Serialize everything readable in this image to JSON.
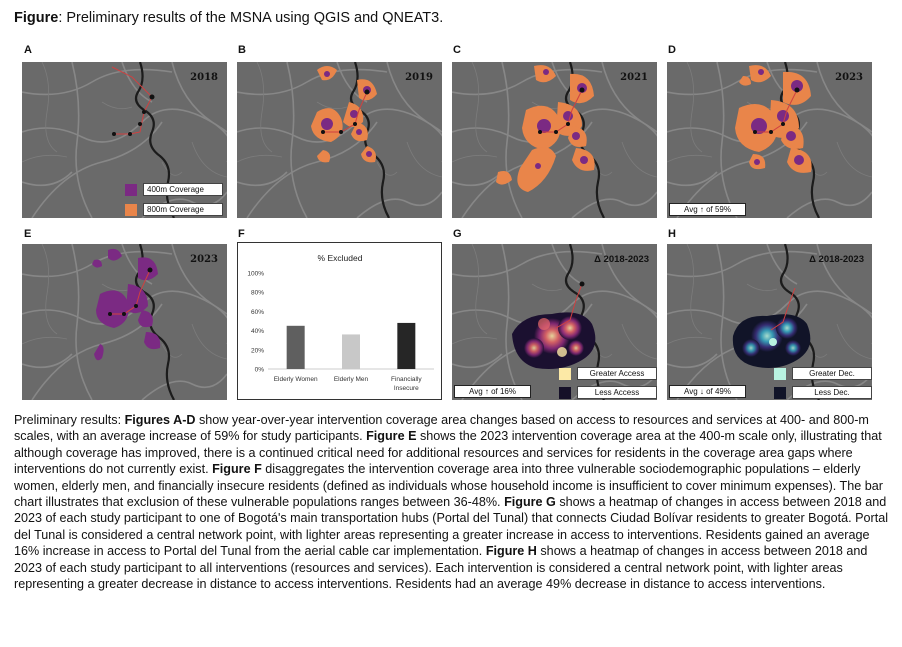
{
  "figure": {
    "title_label": "Figure",
    "title_text": ": Preliminary results of the MSNA using QGIS and QNEAT3."
  },
  "panels": {
    "A": {
      "letter": "A",
      "year": "2018"
    },
    "B": {
      "letter": "B",
      "year": "2019"
    },
    "C": {
      "letter": "C",
      "year": "2021"
    },
    "D": {
      "letter": "D",
      "year": "2023",
      "avg": "Avg ↑ of 59%"
    },
    "E": {
      "letter": "E",
      "year": "2023"
    },
    "F": {
      "letter": "F"
    },
    "G": {
      "letter": "G",
      "delta": "Δ 2018-2023",
      "avg": "Avg ↑ of 16%"
    },
    "H": {
      "letter": "H",
      "delta": "Δ 2018-2023",
      "avg": "Avg ↓ of 49%"
    }
  },
  "legend_coverage": [
    {
      "label": "400m Coverage",
      "color": "#7b2a83"
    },
    {
      "label": "800m Coverage",
      "color": "#e9854a"
    }
  ],
  "legend_access": [
    {
      "label": "Greater Access",
      "color": "#fce9a6"
    },
    {
      "label": "Less Access",
      "color": "#151028"
    }
  ],
  "legend_dec": [
    {
      "label": "Greater Dec.",
      "color": "#b8f2e0"
    },
    {
      "label": "Less Dec.",
      "color": "#111428"
    }
  ],
  "colors": {
    "map_bg": "#6a6a6a",
    "road": "#8d8d8d",
    "river": "#1a1a1a",
    "route": "#d04040"
  },
  "chart_data": {
    "type": "bar",
    "title": "% Excluded",
    "categories": [
      "Elderly Women",
      "Elderly Men",
      "Financially Insecure"
    ],
    "values": [
      45,
      36,
      48
    ],
    "colors": [
      "#5f5f5f",
      "#c8c8c8",
      "#262626"
    ],
    "ylim": [
      0,
      100
    ],
    "yticks": [
      "0%",
      "20%",
      "40%",
      "60%",
      "80%",
      "100%"
    ],
    "grid": false,
    "legend": "none"
  },
  "caption": {
    "p1": "Preliminary results: ",
    "b1": "Figures A-D",
    "p2": " show year-over-year intervention coverage area changes based on access to resources and services at 400- and 800-m scales, with an average increase of 59% for study participants. ",
    "b2": "Figure E",
    "p3": " shows the 2023 intervention coverage area at the 400-m scale only, illustrating that although coverage has improved, there is a continued critical need for additional resources and services for residents in the coverage area gaps where interventions do not currently exist. ",
    "b3": "Figure F",
    "p4": " disaggregates the intervention coverage area into three vulnerable sociodemographic populations – elderly women, elderly men, and financially insecure residents (defined as individuals whose household income is insufficient to cover minimum expenses). The bar chart illustrates that exclusion of these vulnerable populations ranges between 36-48%. ",
    "b4": "Figure G",
    "p5": " shows a heatmap of changes in access between 2018 and 2023 of each study participant to one of Bogotá's main transportation hubs (Portal del Tunal) that connects Ciudad Bolívar residents to greater Bogotá. Portal del Tunal is considered a central network point, with lighter areas representing a greater increase in access to interventions. Residents gained an average 16% increase in access to Portal del Tunal from the aerial cable car implementation. ",
    "b5": "Figure H",
    "p6": " shows a heatmap of changes in access between 2018 and 2023 of each study participant to all interventions (resources and services). Each intervention is considered a central network point, with lighter areas representing a greater decrease in distance to access interventions. Residents had an average 49% decrease in distance to access interventions."
  }
}
